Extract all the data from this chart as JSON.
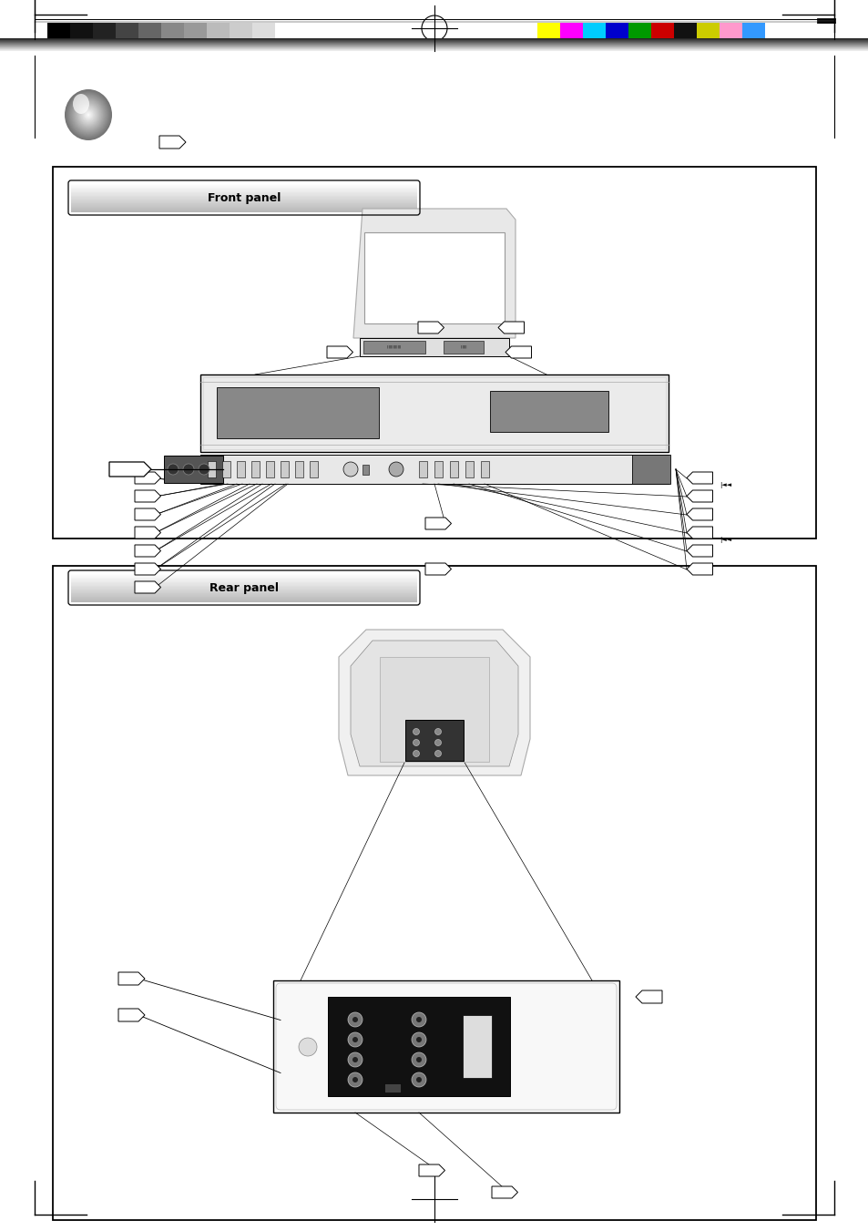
{
  "page_width": 9.54,
  "page_height": 13.51,
  "bg_color": "#ffffff",
  "grayscale_swatches": [
    "#000000",
    "#111111",
    "#222222",
    "#444444",
    "#666666",
    "#888888",
    "#999999",
    "#bbbbbb",
    "#cccccc",
    "#dddddd",
    "#ffffff"
  ],
  "color_swatches": [
    "#ffff00",
    "#ff00ff",
    "#00ccff",
    "#0000cc",
    "#009900",
    "#cc0000",
    "#111111",
    "#cccc00",
    "#ff99cc",
    "#3399ff"
  ],
  "section1_title": "Front panel",
  "section2_title": "Rear panel"
}
